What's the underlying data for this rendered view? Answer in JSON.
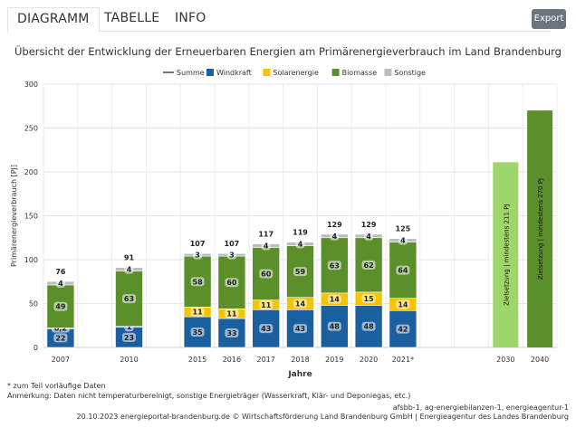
{
  "tabs": [
    "DIAGRAMM",
    "TABELLE",
    "INFO"
  ],
  "export_label": "Export",
  "chart_data": {
    "type": "bar",
    "stacked": true,
    "title": "Übersicht der Entwicklung der Erneuerbaren Energien am Primärenergieverbrauch im Land Brandenburg",
    "xlabel": "Jahre",
    "ylabel": "Primärenergieverbrauch [PJ]",
    "ylim": [
      0,
      300
    ],
    "yticks": [
      0,
      50,
      100,
      150,
      200,
      250,
      300
    ],
    "grid": true,
    "legend_position": "top",
    "categories": [
      "2007",
      "2010",
      "2015",
      "2016",
      "2017",
      "2018",
      "2019",
      "2020",
      "2021*",
      "2030",
      "2040"
    ],
    "series": [
      {
        "name": "Windkraft",
        "color": "#1a5f9e",
        "values": [
          22,
          23,
          35,
          33,
          43,
          43,
          48,
          48,
          42,
          null,
          null
        ],
        "labels": [
          "22",
          "23",
          "35",
          "33",
          "43",
          "43",
          "48",
          "48",
          "42",
          null,
          null
        ]
      },
      {
        "name": "Solarenergie",
        "color": "#f5c400",
        "values": [
          0.2,
          1,
          11,
          11,
          11,
          14,
          14,
          15,
          14,
          null,
          null
        ],
        "labels": [
          "0,2",
          "1",
          "11",
          "11",
          "11",
          "14",
          "14",
          "15",
          "14",
          null,
          null
        ]
      },
      {
        "name": "Biomasse",
        "color": "#5a8f2a",
        "values": [
          49,
          63,
          58,
          60,
          60,
          59,
          63,
          62,
          64,
          null,
          null
        ],
        "labels": [
          "49",
          "63",
          "58",
          "60",
          "60",
          "59",
          "63",
          "62",
          "64",
          null,
          null
        ]
      },
      {
        "name": "Sonstige",
        "color": "#bdbdbd",
        "values": [
          4,
          4,
          3,
          3,
          4,
          4,
          4,
          4,
          4,
          null,
          null
        ],
        "labels": [
          "4",
          "4",
          "3",
          "3",
          "4",
          "4",
          "4",
          "4",
          "4",
          null,
          null
        ]
      }
    ],
    "summe": {
      "name": "Summe",
      "values": [
        76,
        91,
        107,
        107,
        117,
        119,
        129,
        129,
        125,
        null,
        null
      ]
    },
    "targets": [
      {
        "category": "2030",
        "value": 211,
        "color": "#9fd66b",
        "label": "Zielsetzung | mindestens 211 PJ"
      },
      {
        "category": "2040",
        "value": 270,
        "color": "#5a8f2a",
        "label": "Zielsetzung | mindestens 270 PJ"
      }
    ]
  },
  "footnotes": {
    "note1": "* zum Teil vorläufige Daten",
    "note2": "Anmerkung: Daten nicht temperaturbereinigt, sonstige Energieträger (Wasserkraft, Klär- und Deponiegas, etc.)",
    "sources": "afsbb-1, ag-energiebilanzen-1, energieagentur-1",
    "credit": "20.10.2023  energieportal-brandenburg.de  © Wirtschaftsförderung Land Brandenburg GmbH | Energieagentur des Landes Brandenburg"
  }
}
